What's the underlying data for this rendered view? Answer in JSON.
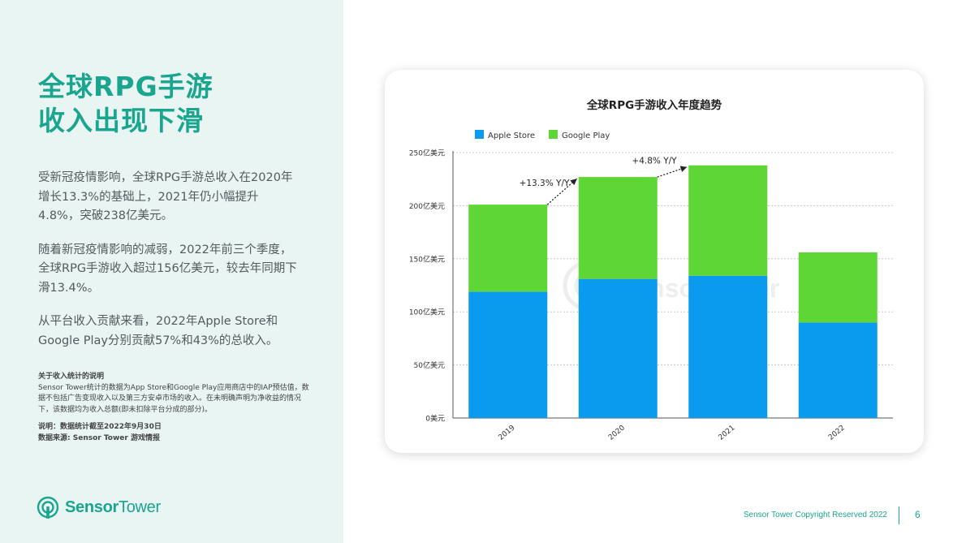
{
  "title": {
    "line1": "全球RPG手游",
    "line2": "收入出现下滑"
  },
  "paragraphs": [
    "受新冠疫情影响，全球RPG手游总收入在2020年增长13.3%的基础上，2021年仍小幅提升4.8%，突破238亿美元。",
    "随着新冠疫情影响的减弱，2022年前三个季度，全球RPG手游收入超过156亿美元，较去年同期下滑13.4%。",
    "从平台收入贡献来看，2022年Apple Store和Google Play分别贡献57%和43%的总收入。"
  ],
  "notes": {
    "heading": "关于收入统计的说明",
    "body": "Sensor Tower统计的数据为App Store和Google Play应用商店中的IAP预估值，数据不包括广告变现收入以及第三方安卓市场的收入。在未明确声明为净收益的情况下，该数据均为收入总额(即未扣除平台分成的部分)。",
    "date_note": "说明：数据统计截至2022年9月30日",
    "source": "数据来源: Sensor Tower 游戏情报"
  },
  "logo": {
    "part1": "Sensor",
    "part2": "Tower"
  },
  "watermark": "SensorTower",
  "footer": {
    "copyright": "Sensor Tower Copyright Reserved 2022",
    "page": "6"
  },
  "colors": {
    "accent": "#1aa58e",
    "apple": "#0a9bef",
    "google": "#5ed636"
  },
  "chart_data": {
    "type": "bar",
    "stacked": true,
    "title": "全球RPG手游收入年度趋势",
    "categories": [
      "2019",
      "2020",
      "2021",
      "2022"
    ],
    "series": [
      {
        "name": "Apple Store",
        "color": "#0a9bef",
        "values": [
          119,
          131,
          134,
          90
        ]
      },
      {
        "name": "Google Play",
        "color": "#5ed636",
        "values": [
          82,
          96,
          104,
          66
        ]
      }
    ],
    "y_ticks": [
      "0美元",
      "50亿美元",
      "100亿美元",
      "150亿美元",
      "200亿美元",
      "250亿美元"
    ],
    "ylim": [
      0,
      250
    ],
    "grid": true,
    "legend": "top-left",
    "annotations": [
      {
        "text": "+13.3% Y/Y",
        "from": "2019",
        "to": "2020"
      },
      {
        "text": "+4.8% Y/Y",
        "from": "2020",
        "to": "2021"
      }
    ]
  }
}
